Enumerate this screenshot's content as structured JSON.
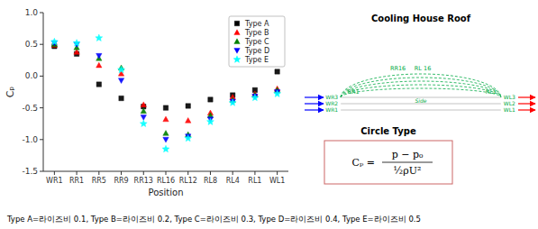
{
  "chart_data": {
    "type": "scatter",
    "xlabel": "Position",
    "ylabel": "Cₚ",
    "categories": [
      "WR1",
      "RR1",
      "RR5",
      "RR9",
      "RR13",
      "RL16",
      "RL12",
      "RL8",
      "RL4",
      "RL1",
      "WL1"
    ],
    "series": [
      {
        "name": "Type A",
        "color": "black",
        "marker": "square",
        "values": [
          0.47,
          0.35,
          -0.13,
          -0.35,
          -0.48,
          -0.5,
          -0.47,
          -0.37,
          -0.3,
          -0.22,
          0.07
        ]
      },
      {
        "name": "Type B",
        "color": "red",
        "marker": "triangle-up",
        "values": [
          0.49,
          0.38,
          0.17,
          0.04,
          -0.45,
          -0.68,
          -0.7,
          -0.58,
          -0.33,
          -0.28,
          -0.2
        ]
      },
      {
        "name": "Type C",
        "color": "green",
        "marker": "triangle-up",
        "values": [
          0.5,
          0.45,
          0.28,
          0.13,
          -0.55,
          -0.9,
          -0.92,
          -0.62,
          -0.38,
          -0.3,
          -0.22
        ]
      },
      {
        "name": "Type D",
        "color": "blue",
        "marker": "triangle-down",
        "values": [
          0.52,
          0.5,
          0.32,
          -0.07,
          -0.65,
          -1.0,
          -0.95,
          -0.68,
          -0.4,
          -0.32,
          -0.25
        ]
      },
      {
        "name": "Type E",
        "color": "cyan",
        "marker": "star",
        "values": [
          0.54,
          0.52,
          0.6,
          0.1,
          -0.75,
          -1.15,
          -0.98,
          -0.72,
          -0.42,
          -0.34,
          -0.28
        ]
      }
    ],
    "ylim": [
      -1.5,
      1.0
    ],
    "yticks": [
      -1.5,
      {
        "value": -1,
        "label": "-1.0"
      },
      -0.5,
      {
        "value": 0,
        "label": "0.0"
      },
      0.5,
      {
        "value": 1,
        "label": "1.0"
      }
    ],
    "grid": false,
    "legend": "upper right",
    "annotations": [
      "Cooling House Roof",
      "Side",
      "RR16",
      "RL 16",
      "RR1",
      "RL1",
      "WR3",
      "WR2",
      "WR1",
      "WL3",
      "WL2",
      "WL1",
      "Circle Type",
      "Cₚ =",
      "p − p₀",
      "½ρU²",
      "Type A=라이즈비 0.1,  Type B=라이즈비 0.2,  Type C=라이즈비 0.3,  Type D=라이즈비 0.4,  Type E=라이즈비 0.5"
    ]
  }
}
